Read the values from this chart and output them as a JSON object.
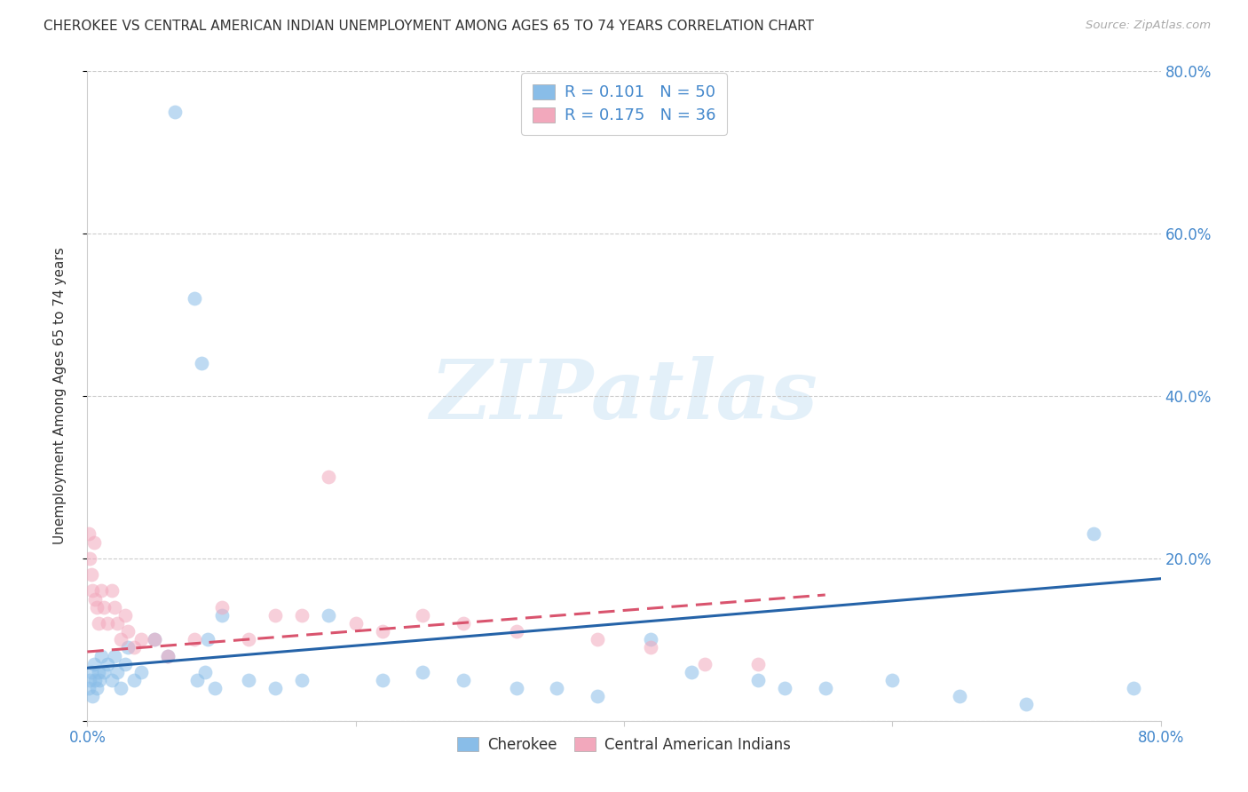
{
  "title": "CHEROKEE VS CENTRAL AMERICAN INDIAN UNEMPLOYMENT AMONG AGES 65 TO 74 YEARS CORRELATION CHART",
  "source": "Source: ZipAtlas.com",
  "ylabel": "Unemployment Among Ages 65 to 74 years",
  "xlim": [
    0.0,
    0.8
  ],
  "ylim": [
    0.0,
    0.8
  ],
  "xticks": [
    0.0,
    0.2,
    0.4,
    0.6,
    0.8
  ],
  "yticks": [
    0.0,
    0.2,
    0.4,
    0.6,
    0.8
  ],
  "xticklabels": [
    "0.0%",
    "",
    "",
    "",
    "80.0%"
  ],
  "yticklabels_right": [
    "",
    "20.0%",
    "40.0%",
    "60.0%",
    "80.0%"
  ],
  "grid_color": "#cccccc",
  "background_color": "#ffffff",
  "watermark_text": "ZIPatlas",
  "cherokee_color": "#89bde8",
  "cherokee_edge_color": "#89bde8",
  "central_american_color": "#f2a8bc",
  "central_american_edge_color": "#f2a8bc",
  "cherokee_line_color": "#2563a8",
  "central_american_line_color": "#d9546e",
  "cherokee_line_x": [
    0.0,
    0.8
  ],
  "cherokee_line_y": [
    0.065,
    0.175
  ],
  "central_american_line_x": [
    0.0,
    0.55
  ],
  "central_american_line_y": [
    0.085,
    0.155
  ],
  "cherokee_x": [
    0.001,
    0.002,
    0.003,
    0.004,
    0.005,
    0.006,
    0.007,
    0.008,
    0.009,
    0.01,
    0.012,
    0.015,
    0.018,
    0.02,
    0.022,
    0.025,
    0.028,
    0.03,
    0.035,
    0.04,
    0.05,
    0.06,
    0.065,
    0.08,
    0.085,
    0.09,
    0.1,
    0.12,
    0.14,
    0.16,
    0.18,
    0.22,
    0.25,
    0.28,
    0.32,
    0.35,
    0.38,
    0.42,
    0.45,
    0.5,
    0.52,
    0.55,
    0.6,
    0.65,
    0.7,
    0.75,
    0.78,
    0.082,
    0.088,
    0.095
  ],
  "cherokee_y": [
    0.04,
    0.05,
    0.06,
    0.03,
    0.07,
    0.05,
    0.04,
    0.06,
    0.05,
    0.08,
    0.06,
    0.07,
    0.05,
    0.08,
    0.06,
    0.04,
    0.07,
    0.09,
    0.05,
    0.06,
    0.1,
    0.08,
    0.75,
    0.52,
    0.44,
    0.1,
    0.13,
    0.05,
    0.04,
    0.05,
    0.13,
    0.05,
    0.06,
    0.05,
    0.04,
    0.04,
    0.03,
    0.1,
    0.06,
    0.05,
    0.04,
    0.04,
    0.05,
    0.03,
    0.02,
    0.23,
    0.04,
    0.05,
    0.06,
    0.04
  ],
  "central_x": [
    0.001,
    0.002,
    0.003,
    0.004,
    0.005,
    0.006,
    0.007,
    0.008,
    0.01,
    0.012,
    0.015,
    0.018,
    0.02,
    0.022,
    0.025,
    0.028,
    0.03,
    0.035,
    0.04,
    0.05,
    0.06,
    0.08,
    0.1,
    0.12,
    0.14,
    0.16,
    0.18,
    0.2,
    0.22,
    0.25,
    0.28,
    0.32,
    0.38,
    0.42,
    0.46,
    0.5
  ],
  "central_y": [
    0.23,
    0.2,
    0.18,
    0.16,
    0.22,
    0.15,
    0.14,
    0.12,
    0.16,
    0.14,
    0.12,
    0.16,
    0.14,
    0.12,
    0.1,
    0.13,
    0.11,
    0.09,
    0.1,
    0.1,
    0.08,
    0.1,
    0.14,
    0.1,
    0.13,
    0.13,
    0.3,
    0.12,
    0.11,
    0.13,
    0.12,
    0.11,
    0.1,
    0.09,
    0.07,
    0.07
  ]
}
